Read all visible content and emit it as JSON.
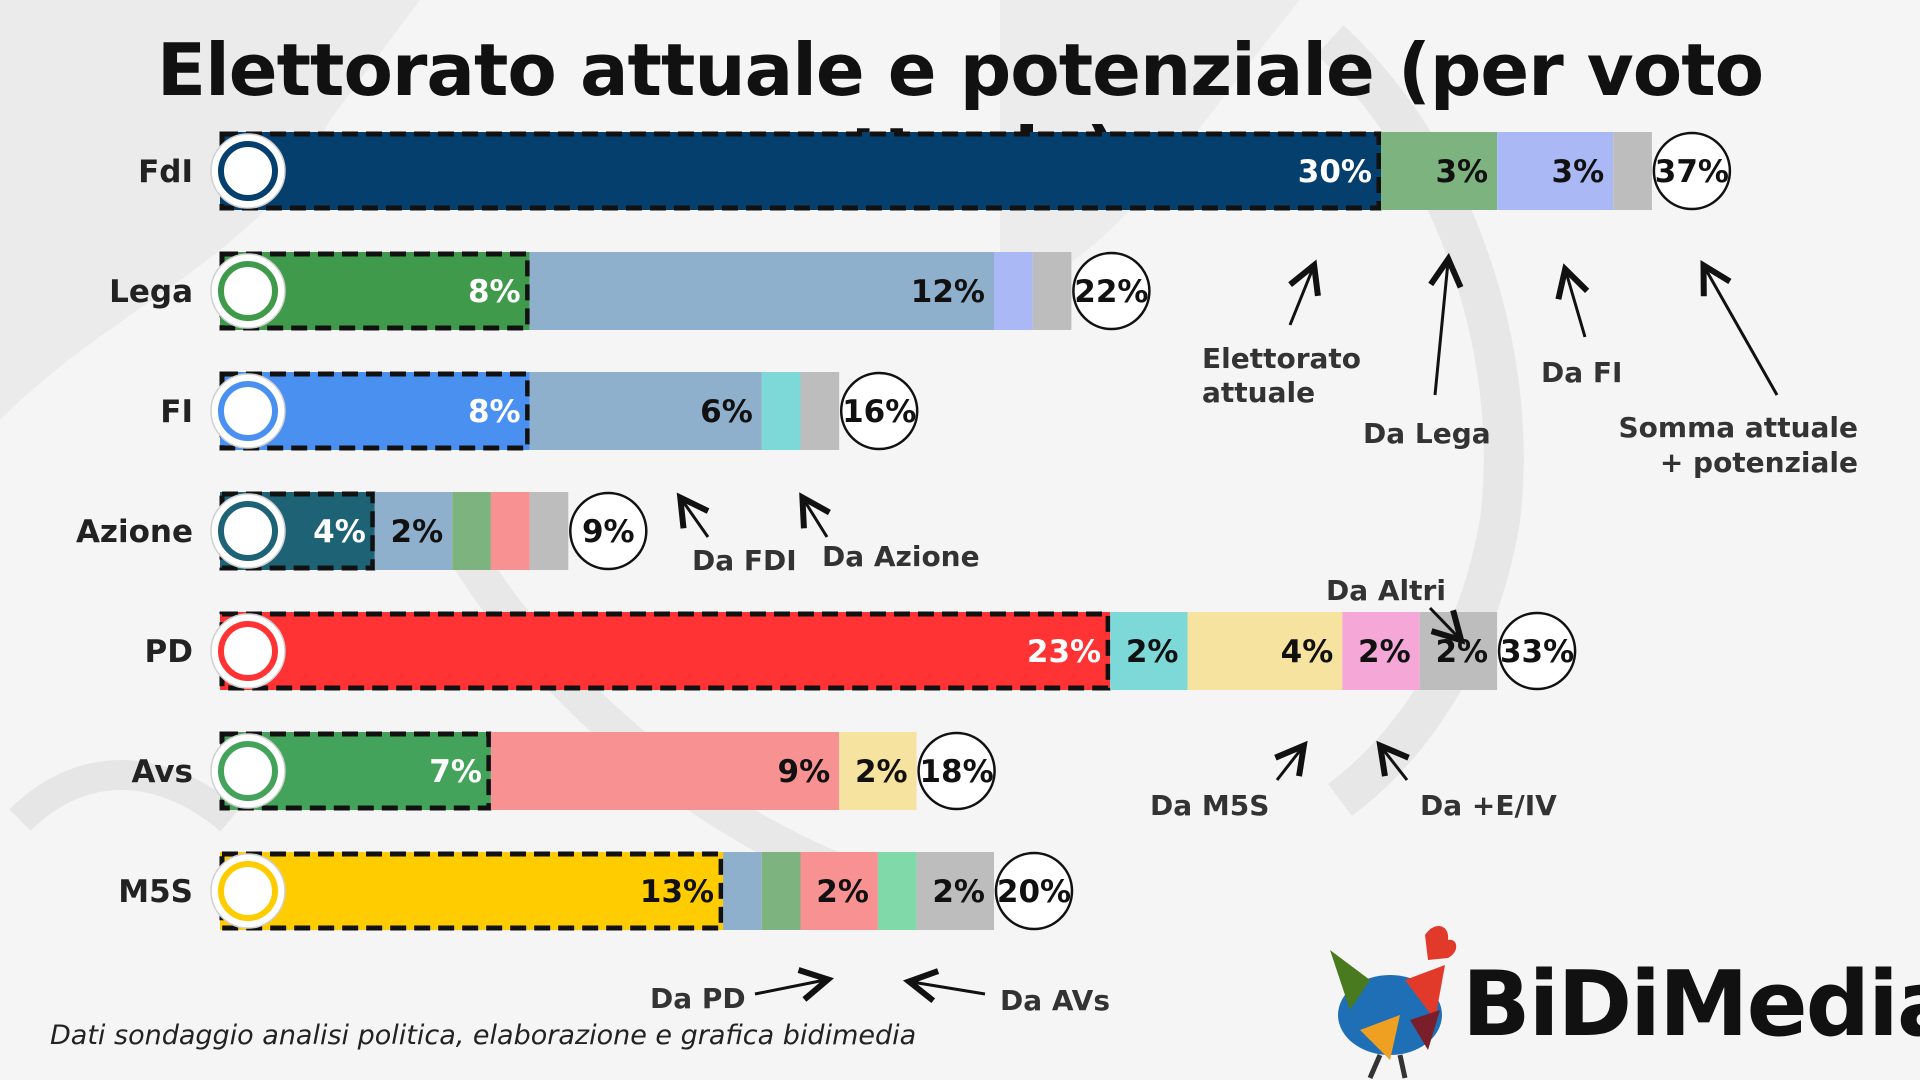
{
  "title": "Elettorato attuale e potenziale (per voto attuale)",
  "source_note": "Dati sondaggio analisi politica, elaborazione e grafica bidimedia",
  "brand": {
    "name": "BiDiMedia"
  },
  "colors": {
    "background": "#f5f5f5",
    "da_fdi": "#8fb0cc",
    "da_lega": "#7db37f",
    "da_fi": "#aab8f5",
    "da_azione": "#7dd8d8",
    "da_pd": "#f89292",
    "da_avs": "#7fd9a8",
    "da_m5s": "#f7e3a0",
    "da_plus_e_iv": "#f5a8d8",
    "da_altri": "#bdbdbd"
  },
  "annotations": {
    "elettorato_attuale": "Elettorato attuale",
    "da_lega": "Da Lega",
    "da_fi": "Da FI",
    "somma": "Somma attuale + potenziale",
    "da_fdi": "Da FDI",
    "da_azione": "Da Azione",
    "da_altri": "Da Altri",
    "da_m5s": "Da M5S",
    "da_plus_e_iv": "Da +E/IV",
    "da_pd": "Da PD",
    "da_avs": "Da AVs"
  },
  "chart_data": {
    "type": "bar",
    "orientation": "horizontal",
    "stacked": true,
    "title": "Elettorato attuale e potenziale (per voto attuale)",
    "unit": "%",
    "parties": [
      {
        "name": "FdI",
        "logo": "FdI logo",
        "current": {
          "value": 30,
          "label": "30%",
          "color": "#053f6e",
          "text_color": "#ffffff"
        },
        "potential": [
          {
            "source": "Da Lega",
            "value": 3,
            "label": "3%",
            "color": "#7db37f"
          },
          {
            "source": "Da FI",
            "value": 3,
            "label": "3%",
            "color": "#aab8f5"
          },
          {
            "source": "Da Altri",
            "value": 1,
            "label": "",
            "color": "#bdbdbd"
          }
        ],
        "total": "37%"
      },
      {
        "name": "Lega",
        "logo": "Lega logo",
        "current": {
          "value": 8,
          "label": "8%",
          "color": "#3f9a4b",
          "text_color": "#ffffff"
        },
        "potential": [
          {
            "source": "Da FDI",
            "value": 12,
            "label": "12%",
            "color": "#8fb0cc"
          },
          {
            "source": "Da FI",
            "value": 1,
            "label": "",
            "color": "#aab8f5"
          },
          {
            "source": "Da Altri",
            "value": 1,
            "label": "",
            "color": "#bdbdbd"
          }
        ],
        "total": "22%"
      },
      {
        "name": "FI",
        "logo": "FI logo",
        "current": {
          "value": 8,
          "label": "8%",
          "color": "#4a90f0",
          "text_color": "#ffffff"
        },
        "potential": [
          {
            "source": "Da FDI",
            "value": 6,
            "label": "6%",
            "color": "#8fb0cc"
          },
          {
            "source": "Da Azione",
            "value": 1,
            "label": "",
            "color": "#7dd8d8"
          },
          {
            "source": "Da Altri",
            "value": 1,
            "label": "",
            "color": "#bdbdbd"
          }
        ],
        "total": "16%"
      },
      {
        "name": "Azione",
        "logo": "Azione logo",
        "current": {
          "value": 4,
          "label": "4%",
          "color": "#1e6275",
          "text_color": "#ffffff"
        },
        "potential": [
          {
            "source": "Da FDI",
            "value": 2,
            "label": "2%",
            "color": "#8fb0cc"
          },
          {
            "source": "Da Lega",
            "value": 1,
            "label": "",
            "color": "#7db37f"
          },
          {
            "source": "Da PD",
            "value": 1,
            "label": "",
            "color": "#f89292"
          },
          {
            "source": "Da Altri",
            "value": 1,
            "label": "",
            "color": "#bdbdbd"
          }
        ],
        "total": "9%"
      },
      {
        "name": "PD",
        "logo": "PD logo",
        "current": {
          "value": 23,
          "label": "23%",
          "color": "#ff3333",
          "text_color": "#ffffff"
        },
        "potential": [
          {
            "source": "Da Azione",
            "value": 2,
            "label": "2%",
            "color": "#7dd8d8"
          },
          {
            "source": "Da M5S",
            "value": 4,
            "label": "4%",
            "color": "#f7e3a0"
          },
          {
            "source": "Da +E/IV",
            "value": 2,
            "label": "2%",
            "color": "#f5a8d8"
          },
          {
            "source": "Da Altri",
            "value": 2,
            "label": "2%",
            "color": "#bdbdbd"
          }
        ],
        "total": "33%"
      },
      {
        "name": "Avs",
        "logo": "AVS logo",
        "current": {
          "value": 7,
          "label": "7%",
          "color": "#43a35a",
          "text_color": "#ffffff"
        },
        "potential": [
          {
            "source": "Da PD",
            "value": 9,
            "label": "9%",
            "color": "#f89292"
          },
          {
            "source": "Da M5S",
            "value": 2,
            "label": "2%",
            "color": "#f7e3a0"
          }
        ],
        "total": "18%"
      },
      {
        "name": "M5S",
        "logo": "M5S logo",
        "current": {
          "value": 13,
          "label": "13%",
          "color": "#ffcc00",
          "text_color": "#111111"
        },
        "potential": [
          {
            "source": "Da FDI",
            "value": 1,
            "label": "",
            "color": "#8fb0cc"
          },
          {
            "source": "Da Lega",
            "value": 1,
            "label": "",
            "color": "#7db37f"
          },
          {
            "source": "Da PD",
            "value": 2,
            "label": "2%",
            "color": "#f89292"
          },
          {
            "source": "Da AVs",
            "value": 1,
            "label": "",
            "color": "#7fd9a8"
          },
          {
            "source": "Da Altri",
            "value": 2,
            "label": "2%",
            "color": "#bdbdbd"
          }
        ],
        "total": "20%"
      }
    ]
  }
}
